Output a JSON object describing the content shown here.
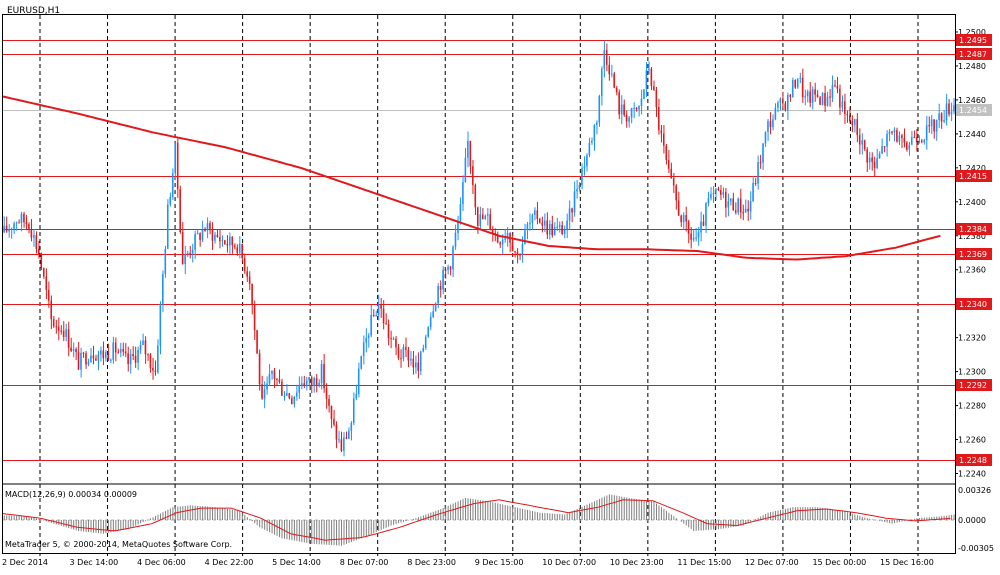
{
  "symbol_title": "EURUSD,H1",
  "macd_label": "MACD(12,26,9) 0.00034 0.00009",
  "copyright": "MetaTrader 5, © 2000-2014, MetaQuotes Software Corp.",
  "colors": {
    "background": "#ffffff",
    "bull_candle": "#1e90ff",
    "bear_candle": "#e0191c",
    "ma_line": "#e0191c",
    "level_line": "#e0191c",
    "grid": "#000000",
    "macd_hist": "#7f7f7f",
    "macd_signal": "#e0191c"
  },
  "chart_data": {
    "type": "candlestick",
    "instrument": "EURUSD",
    "timeframe": "H1",
    "ylim": [
      1.2235,
      1.251
    ],
    "y_ticks": [
      "1.2500",
      "1.2480",
      "1.2460",
      "1.2440",
      "1.2420",
      "1.2400",
      "1.2380",
      "1.2360",
      "1.2340",
      "1.2320",
      "1.2300",
      "1.2280",
      "1.2260",
      "1.2240"
    ],
    "x_ticks": [
      "2 Dec 2014",
      "3 Dec 14:00",
      "4 Dec 06:00",
      "4 Dec 22:00",
      "5 Dec 14:00",
      "8 Dec 07:00",
      "8 Dec 23:00",
      "9 Dec 15:00",
      "10 Dec 07:00",
      "10 Dec 23:00",
      "11 Dec 15:00",
      "12 Dec 07:00",
      "15 Dec 00:00",
      "15 Dec 16:00"
    ],
    "horizontal_levels": [
      "1.2495",
      "1.2487",
      "1.2415",
      "1.2384",
      "1.2369",
      "1.2340",
      "1.2292",
      "1.2248"
    ],
    "current_price": "1.2454",
    "close_path": [
      [
        0,
        1.2382
      ],
      [
        5,
        1.239
      ],
      [
        10,
        1.2388
      ],
      [
        14,
        1.237
      ],
      [
        19,
        1.233
      ],
      [
        24,
        1.2325
      ],
      [
        30,
        1.2305
      ],
      [
        35,
        1.2312
      ],
      [
        40,
        1.231
      ],
      [
        45,
        1.2313
      ],
      [
        50,
        1.2305
      ],
      [
        56,
        1.2315
      ],
      [
        61,
        1.23
      ],
      [
        66,
        1.2395
      ],
      [
        69,
        1.243
      ],
      [
        72,
        1.2365
      ],
      [
        76,
        1.2375
      ],
      [
        81,
        1.2385
      ],
      [
        85,
        1.238
      ],
      [
        90,
        1.2376
      ],
      [
        94,
        1.2375
      ],
      [
        99,
        1.2355
      ],
      [
        104,
        1.228
      ],
      [
        108,
        1.23
      ],
      [
        112,
        1.229
      ],
      [
        116,
        1.2285
      ],
      [
        120,
        1.2295
      ],
      [
        124,
        1.2293
      ],
      [
        128,
        1.23
      ],
      [
        132,
        1.227
      ],
      [
        136,
        1.2255
      ],
      [
        140,
        1.227
      ],
      [
        143,
        1.23
      ],
      [
        147,
        1.2325
      ],
      [
        151,
        1.234
      ],
      [
        155,
        1.2322
      ],
      [
        159,
        1.231
      ],
      [
        163,
        1.231
      ],
      [
        167,
        1.23
      ],
      [
        171,
        1.233
      ],
      [
        175,
        1.235
      ],
      [
        180,
        1.2365
      ],
      [
        184,
        1.2395
      ],
      [
        187,
        1.2435
      ],
      [
        191,
        1.239
      ],
      [
        195,
        1.239
      ],
      [
        199,
        1.2378
      ],
      [
        203,
        1.2383
      ],
      [
        207,
        1.2368
      ],
      [
        211,
        1.2385
      ],
      [
        215,
        1.2392
      ],
      [
        219,
        1.2385
      ],
      [
        223,
        1.2383
      ],
      [
        227,
        1.2385
      ],
      [
        231,
        1.241
      ],
      [
        235,
        1.2428
      ],
      [
        239,
        1.245
      ],
      [
        242,
        1.249
      ],
      [
        244,
        1.248
      ],
      [
        248,
        1.2455
      ],
      [
        252,
        1.245
      ],
      [
        256,
        1.2455
      ],
      [
        260,
        1.248
      ],
      [
        264,
        1.2445
      ],
      [
        268,
        1.2415
      ],
      [
        272,
        1.2395
      ],
      [
        276,
        1.238
      ],
      [
        280,
        1.2378
      ],
      [
        284,
        1.24
      ],
      [
        288,
        1.2405
      ],
      [
        292,
        1.24
      ],
      [
        296,
        1.2398
      ],
      [
        300,
        1.2395
      ],
      [
        304,
        1.242
      ],
      [
        308,
        1.2445
      ],
      [
        312,
        1.2455
      ],
      [
        316,
        1.246
      ],
      [
        320,
        1.2475
      ],
      [
        323,
        1.246
      ],
      [
        327,
        1.2463
      ],
      [
        331,
        1.246
      ],
      [
        335,
        1.247
      ],
      [
        339,
        1.245
      ],
      [
        343,
        1.2445
      ],
      [
        347,
        1.243
      ],
      [
        351,
        1.242
      ],
      [
        355,
        1.2435
      ],
      [
        359,
        1.2442
      ],
      [
        363,
        1.243
      ],
      [
        367,
        1.244
      ],
      [
        371,
        1.244
      ],
      [
        375,
        1.2445
      ],
      [
        379,
        1.2453
      ],
      [
        383,
        1.2458
      ]
    ],
    "moving_average": [
      [
        0,
        1.2462
      ],
      [
        30,
        1.2452
      ],
      [
        60,
        1.2441
      ],
      [
        90,
        1.2432
      ],
      [
        120,
        1.242
      ],
      [
        150,
        1.2405
      ],
      [
        180,
        1.239
      ],
      [
        200,
        1.238
      ],
      [
        220,
        1.2374
      ],
      [
        240,
        1.2372
      ],
      [
        260,
        1.2372
      ],
      [
        280,
        1.2371
      ],
      [
        300,
        1.2367
      ],
      [
        320,
        1.2366
      ],
      [
        340,
        1.2368
      ],
      [
        360,
        1.2373
      ],
      [
        378,
        1.238
      ]
    ],
    "macd": {
      "ylim": [
        -0.0036,
        0.0036
      ],
      "y_ticks": [
        "0.00326",
        "0.0000",
        "-0.00305"
      ],
      "histogram": [
        [
          0,
          0.0005
        ],
        [
          10,
          0.0004
        ],
        [
          20,
          -0.0004
        ],
        [
          30,
          -0.0012
        ],
        [
          40,
          -0.0015
        ],
        [
          50,
          -0.001
        ],
        [
          60,
          0.0003
        ],
        [
          68,
          0.0014
        ],
        [
          75,
          0.0016
        ],
        [
          85,
          0.0014
        ],
        [
          95,
          0.001
        ],
        [
          103,
          -0.0008
        ],
        [
          112,
          -0.002
        ],
        [
          124,
          -0.0026
        ],
        [
          136,
          -0.0028
        ],
        [
          146,
          -0.0018
        ],
        [
          156,
          -0.0006
        ],
        [
          166,
          0.0002
        ],
        [
          176,
          0.0012
        ],
        [
          186,
          0.0024
        ],
        [
          196,
          0.002
        ],
        [
          206,
          0.0014
        ],
        [
          216,
          0.0008
        ],
        [
          226,
          0.0006
        ],
        [
          236,
          0.0018
        ],
        [
          244,
          0.0028
        ],
        [
          252,
          0.0024
        ],
        [
          262,
          0.002
        ],
        [
          270,
          0.0004
        ],
        [
          278,
          -0.0012
        ],
        [
          288,
          -0.001
        ],
        [
          298,
          -0.0006
        ],
        [
          308,
          0.0008
        ],
        [
          318,
          0.0014
        ],
        [
          328,
          0.0014
        ],
        [
          338,
          0.001
        ],
        [
          348,
          0.0002
        ],
        [
          358,
          -0.0004
        ],
        [
          368,
          0.0002
        ],
        [
          378,
          0.0004
        ],
        [
          383,
          0.0006
        ]
      ],
      "signal": [
        [
          0,
          0.0007
        ],
        [
          15,
          0.0002
        ],
        [
          30,
          -0.0008
        ],
        [
          45,
          -0.0012
        ],
        [
          60,
          -0.0004
        ],
        [
          70,
          0.0008
        ],
        [
          80,
          0.0013
        ],
        [
          92,
          0.0013
        ],
        [
          104,
          0.0002
        ],
        [
          116,
          -0.0015
        ],
        [
          130,
          -0.0022
        ],
        [
          145,
          -0.0019
        ],
        [
          160,
          -0.0008
        ],
        [
          175,
          0.0006
        ],
        [
          190,
          0.0018
        ],
        [
          200,
          0.0022
        ],
        [
          212,
          0.0016
        ],
        [
          228,
          0.0008
        ],
        [
          240,
          0.0014
        ],
        [
          250,
          0.0022
        ],
        [
          262,
          0.0021
        ],
        [
          274,
          0.0008
        ],
        [
          284,
          -0.0004
        ],
        [
          296,
          -0.0006
        ],
        [
          308,
          0.0002
        ],
        [
          320,
          0.001
        ],
        [
          332,
          0.0012
        ],
        [
          344,
          0.0008
        ],
        [
          356,
          0.0002
        ],
        [
          368,
          -0.0001
        ],
        [
          383,
          0.0002
        ]
      ]
    }
  }
}
